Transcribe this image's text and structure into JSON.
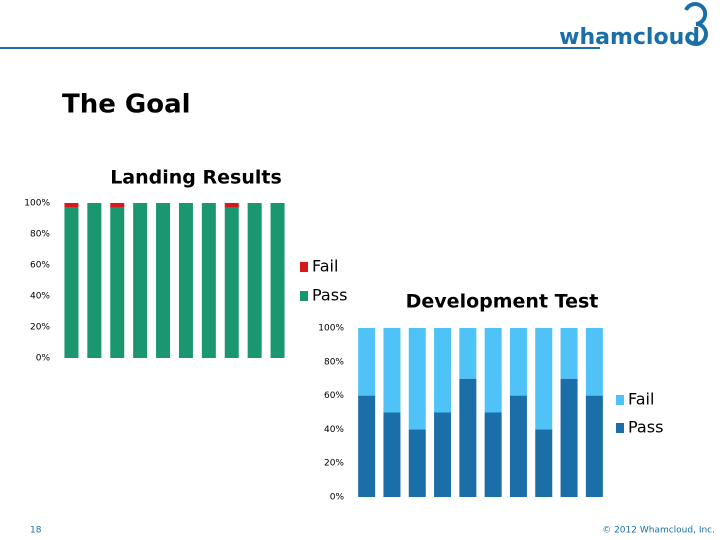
{
  "header": {
    "logo": "whamcloud",
    "title": "The Goal"
  },
  "footer": {
    "page": "18",
    "copyright": "© 2012 Whamcloud, Inc."
  },
  "chart_data": [
    {
      "type": "stacked-bar",
      "title": "Landing Results",
      "categories": [
        null,
        null,
        null,
        null,
        null,
        null,
        null,
        null,
        null,
        null
      ],
      "series": [
        {
          "name": "Pass",
          "color": "#1a9670",
          "values": [
            97,
            100,
            97,
            100,
            100,
            100,
            100,
            97,
            100,
            100
          ]
        },
        {
          "name": "Fail",
          "color": "#d7191c",
          "values": [
            3,
            0,
            3,
            0,
            0,
            0,
            0,
            3,
            0,
            0
          ]
        }
      ],
      "ylim": [
        0,
        100
      ],
      "yticks": [
        {
          "value": 0,
          "label": "0%"
        },
        {
          "value": 20,
          "label": "20%"
        },
        {
          "value": 40,
          "label": "40%"
        },
        {
          "value": 60,
          "label": "60%"
        },
        {
          "value": 80,
          "label": "80%"
        },
        {
          "value": 100,
          "label": "100%"
        }
      ],
      "legend": "right",
      "grid": false
    },
    {
      "type": "stacked-bar",
      "title": "Development Test",
      "categories": [
        null,
        null,
        null,
        null,
        null,
        null,
        null,
        null,
        null,
        null
      ],
      "series": [
        {
          "name": "Pass",
          "color": "#1b6fa8",
          "values": [
            60,
            50,
            40,
            50,
            70,
            50,
            60,
            40,
            70,
            60
          ]
        },
        {
          "name": "Fail",
          "color": "#4fc3f7",
          "values": [
            40,
            50,
            60,
            50,
            30,
            50,
            40,
            60,
            30,
            40
          ]
        }
      ],
      "ylim": [
        0,
        100
      ],
      "yticks": [
        {
          "value": 0,
          "label": "0%"
        },
        {
          "value": 20,
          "label": "20%"
        },
        {
          "value": 40,
          "label": "40%"
        },
        {
          "value": 60,
          "label": "60%"
        },
        {
          "value": 80,
          "label": "80%"
        },
        {
          "value": 100,
          "label": "100%"
        }
      ],
      "legend": "right",
      "grid": false
    }
  ]
}
